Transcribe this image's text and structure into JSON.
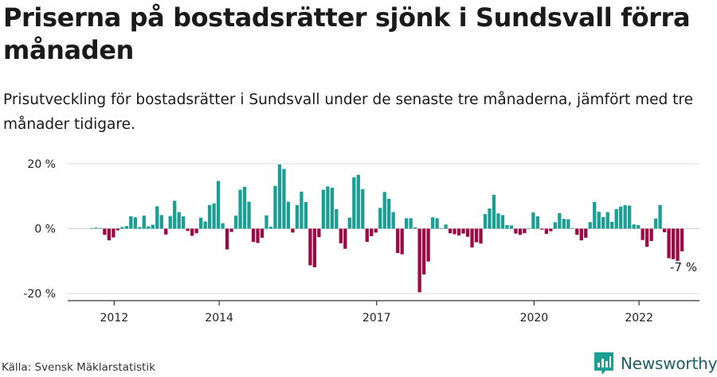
{
  "title": "Priserna på bostadsrätter sjönk i Sundsvall förra månaden",
  "subtitle": "Prisutveckling för bostadsrätter i Sundsvall under de senaste tre månaderna, jämfört med tre månader tidigare.",
  "source": "Källa: Svensk Mäklarstatistik",
  "brand": {
    "name": "Newsworthy",
    "icon": "newsworthy-logo-icon"
  },
  "colors": {
    "positive": "#1b9e94",
    "negative": "#9c0a45",
    "grid": "#dddddd",
    "axis": "#333333"
  },
  "chart_data": {
    "type": "bar",
    "title": "",
    "xlabel": "",
    "ylabel": "",
    "ylim": [
      -21,
      21
    ],
    "y_ticks": [
      20,
      0,
      -20
    ],
    "y_tick_labels": [
      "20 %",
      "0 %",
      "-20 %"
    ],
    "x_ticks": [
      2012,
      2014,
      2017,
      2020,
      2022
    ],
    "x_tick_labels": [
      "2012",
      "2014",
      "2017",
      "2020",
      "2022"
    ],
    "grid": true,
    "first_period": "2011-08",
    "last_value_label": "-7 %",
    "values": [
      0.2,
      0.3,
      0.2,
      -1.9,
      -3.6,
      -2.7,
      -0.5,
      0.5,
      0.8,
      3.8,
      3.5,
      0.5,
      4.0,
      0.7,
      1.2,
      6.9,
      4.2,
      -1.8,
      3.9,
      8.6,
      5.1,
      3.8,
      -0.7,
      -2.2,
      -1.4,
      3.4,
      2.2,
      7.3,
      7.8,
      14.7,
      1.7,
      -6.4,
      -1.0,
      4.0,
      12.0,
      12.9,
      8.3,
      -4.1,
      -4.4,
      -2.8,
      4.1,
      0.6,
      13.2,
      19.8,
      18.4,
      8.3,
      -1.2,
      7.3,
      11.4,
      8.2,
      -11.3,
      -11.9,
      -2.6,
      12.0,
      13.0,
      12.6,
      6.0,
      -4.5,
      -6.2,
      3.4,
      15.8,
      16.6,
      12.2,
      -4.1,
      -2.3,
      -1.2,
      6.4,
      11.3,
      9.2,
      5.1,
      -7.5,
      -7.9,
      3.2,
      3.2,
      0.4,
      -19.6,
      -14.1,
      -10.1,
      3.5,
      3.2,
      0.1,
      1.3,
      -1.4,
      -1.7,
      -2.1,
      -1.5,
      -2.5,
      -5.8,
      -4.2,
      -4.6,
      4.5,
      6.2,
      10.4,
      4.7,
      4.2,
      1.1,
      1.0,
      -1.5,
      -1.9,
      -1.4,
      0.1,
      5.0,
      3.8,
      -0.3,
      -1.6,
      -0.8,
      2.0,
      4.8,
      3.0,
      2.9,
      0.2,
      -1.9,
      -3.6,
      -2.8,
      2.0,
      8.2,
      5.2,
      3.6,
      5.1,
      2.1,
      6.0,
      6.8,
      7.2,
      7.1,
      1.3,
      1.1,
      -3.5,
      -5.6,
      -3.8,
      3.1,
      7.3,
      -1.1,
      -9.1,
      -9.4,
      -9.9,
      -7.0
    ]
  }
}
